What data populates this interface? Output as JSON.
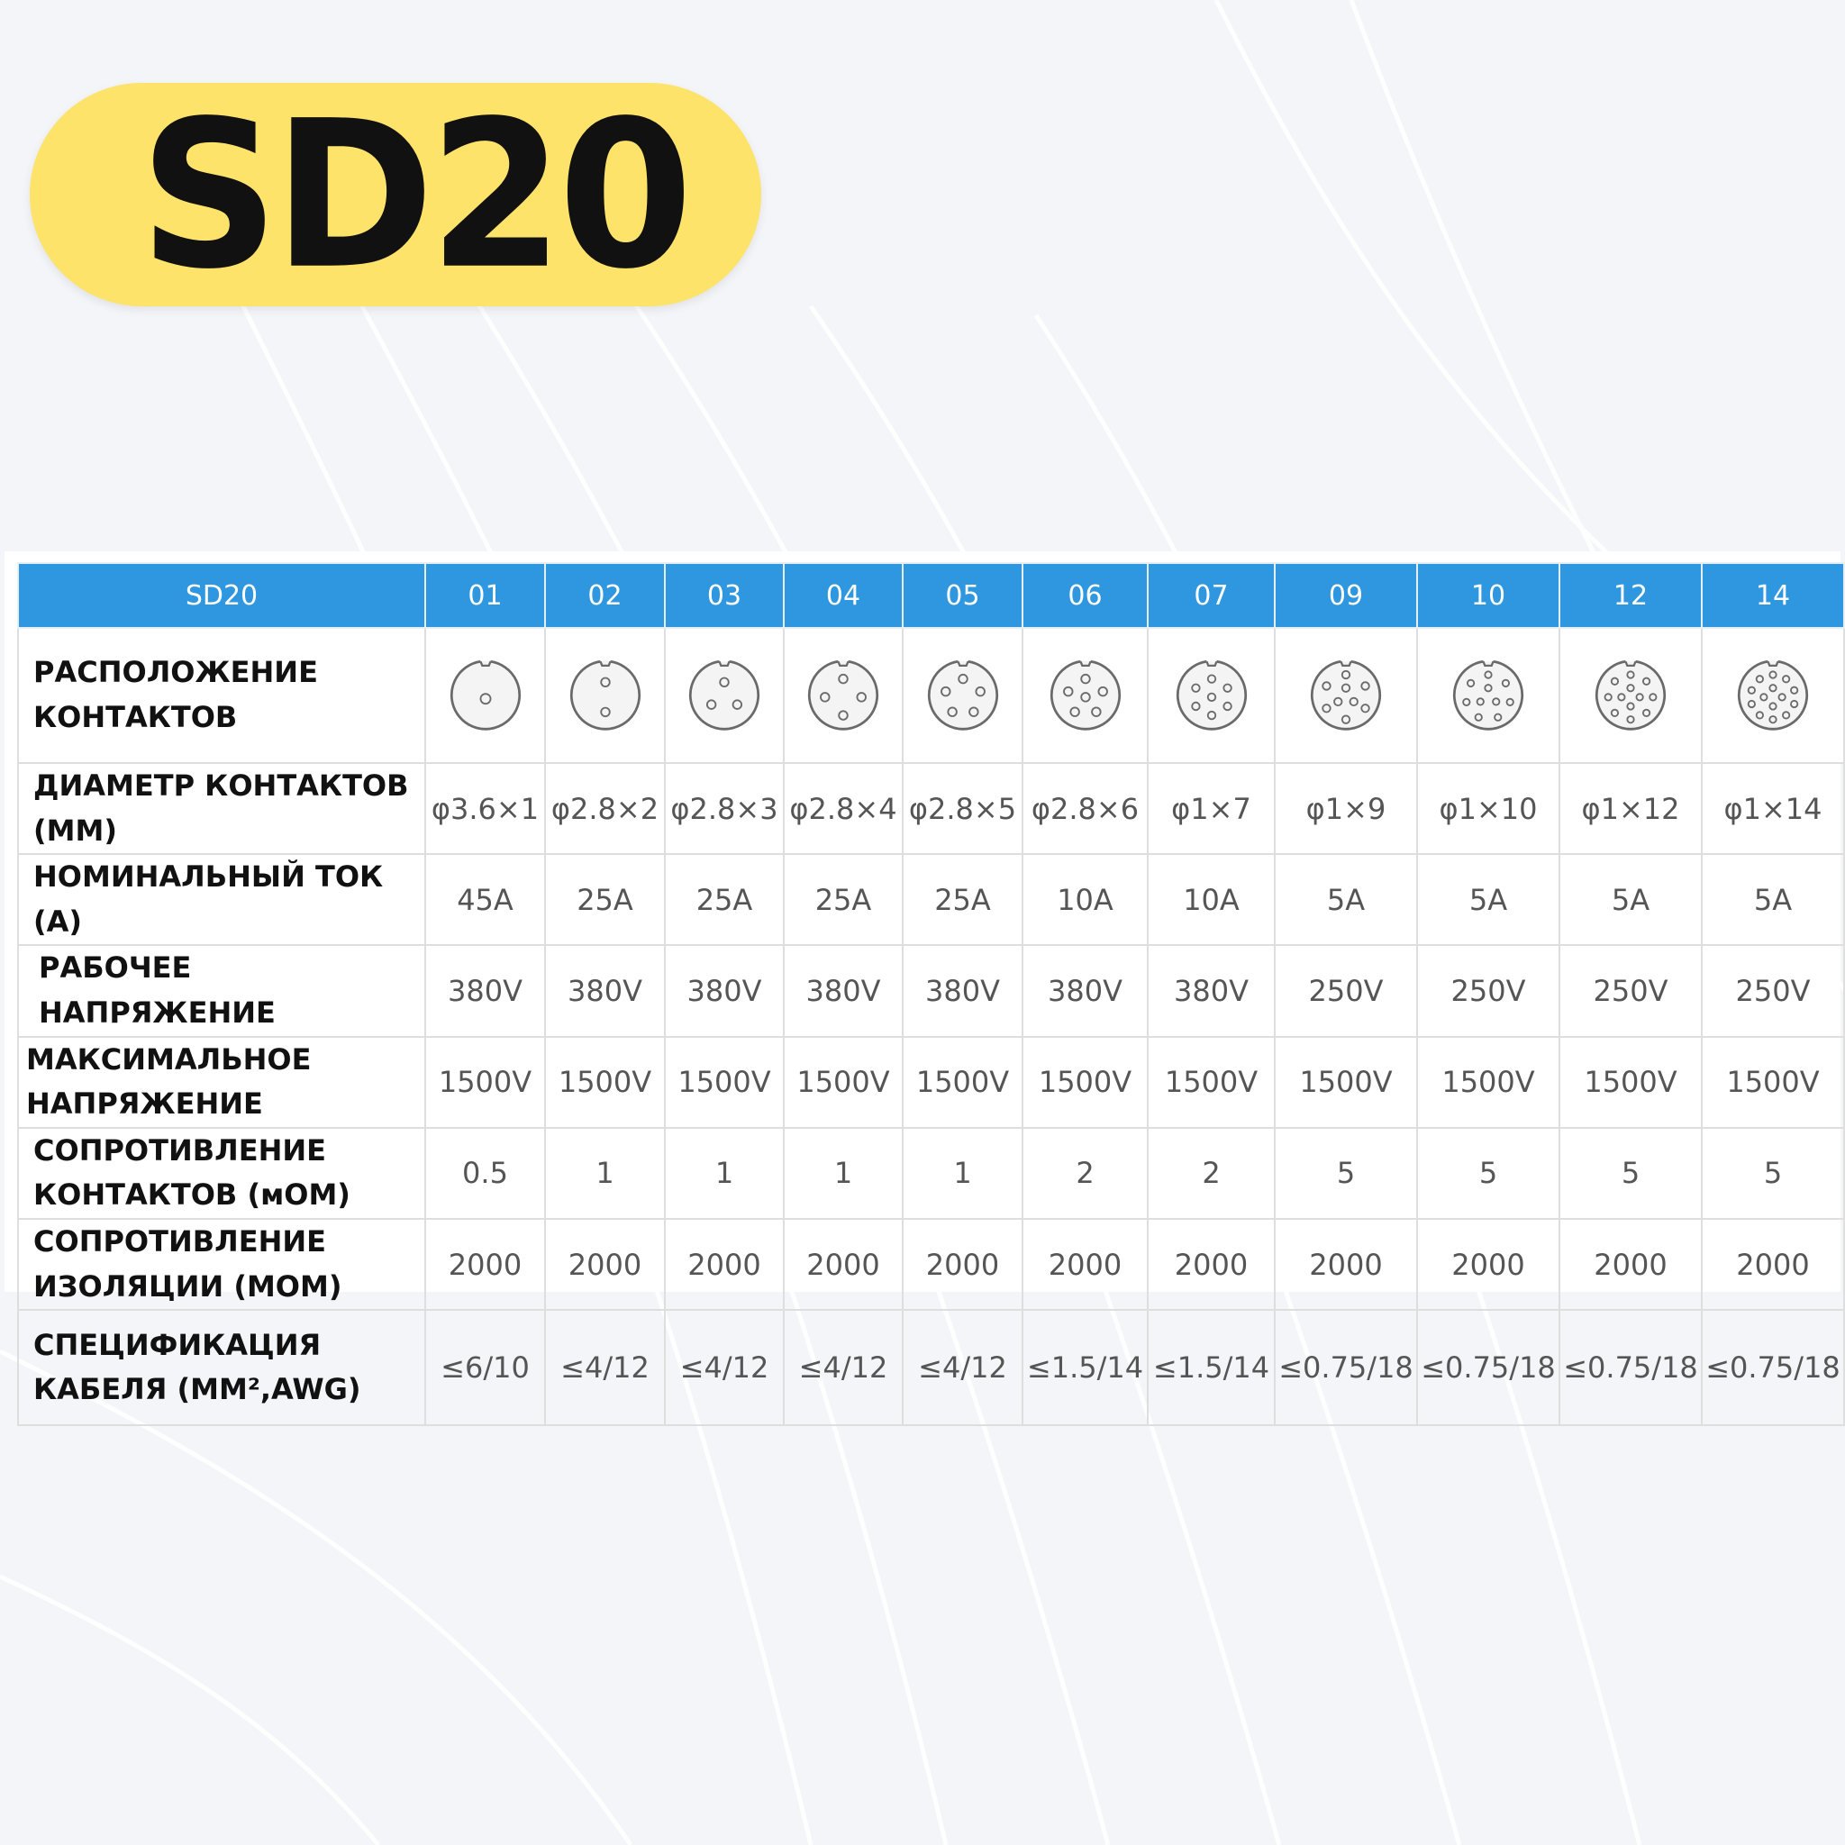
{
  "title": "SD20",
  "table": {
    "header_label": "SD20",
    "columns": [
      "01",
      "02",
      "03",
      "04",
      "05",
      "06",
      "07",
      "09",
      "10",
      "12",
      "14"
    ],
    "pins": [
      1,
      2,
      3,
      4,
      5,
      6,
      7,
      9,
      10,
      12,
      14
    ],
    "rows": [
      {
        "label": "РАСПОЛОЖЕНИЕ КОНТАКТОВ",
        "type": "layout"
      },
      {
        "label": "ДИАМЕТР КОНТАКТОВ (ММ)",
        "values": [
          "φ3.6×1",
          "φ2.8×2",
          "φ2.8×3",
          "φ2.8×4",
          "φ2.8×5",
          "φ2.8×6",
          "φ1×7",
          "φ1×9",
          "φ1×10",
          "φ1×12",
          "φ1×14"
        ]
      },
      {
        "label": "НОМИНАЛЬНЫЙ ТОК (А)",
        "values": [
          "45A",
          "25A",
          "25A",
          "25A",
          "25A",
          "10A",
          "10A",
          "5A",
          "5A",
          "5A",
          "5A"
        ]
      },
      {
        "label": "РАБОЧЕЕ НАПРЯЖЕНИЕ",
        "values": [
          "380V",
          "380V",
          "380V",
          "380V",
          "380V",
          "380V",
          "380V",
          "250V",
          "250V",
          "250V",
          "250V"
        ]
      },
      {
        "label": "МАКСИМАЛЬНОЕ НАПРЯЖЕНИЕ",
        "values": [
          "1500V",
          "1500V",
          "1500V",
          "1500V",
          "1500V",
          "1500V",
          "1500V",
          "1500V",
          "1500V",
          "1500V",
          "1500V"
        ]
      },
      {
        "label": "СОПРОТИВЛЕНИЕ КОНТАКТОВ (мОМ)",
        "values": [
          "0.5",
          "1",
          "1",
          "1",
          "1",
          "2",
          "2",
          "5",
          "5",
          "5",
          "5"
        ]
      },
      {
        "label": "СОПРОТИВЛЕНИЕ ИЗОЛЯЦИИ (МОМ)",
        "values": [
          "2000",
          "2000",
          "2000",
          "2000",
          "2000",
          "2000",
          "2000",
          "2000",
          "2000",
          "2000",
          "2000"
        ]
      },
      {
        "label": "СПЕЦИФИКАЦИЯ КАБЕЛЯ (ММ²,AWG)",
        "values": [
          "≤6/10",
          "≤4/12",
          "≤4/12",
          "≤4/12",
          "≤4/12",
          "≤1.5/14",
          "≤1.5/14",
          "≤0.75/18",
          "≤0.75/18",
          "≤0.75/18",
          "≤0.75/18"
        ]
      }
    ]
  }
}
